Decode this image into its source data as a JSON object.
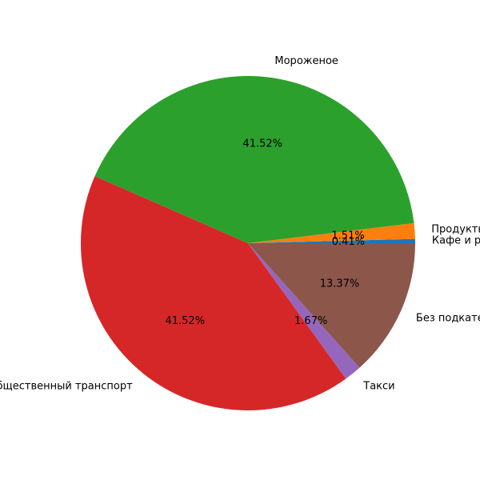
{
  "chart_data": {
    "type": "pie",
    "slices": [
      {
        "label": "Кафе и рестораны",
        "value": 0.41,
        "pct_label": "0.41%",
        "color": "#1f77b4"
      },
      {
        "label": "Продукты",
        "value": 1.51,
        "pct_label": "1.51%",
        "color": "#ff7f0e"
      },
      {
        "label": "Мороженое",
        "value": 41.52,
        "pct_label": "41.52%",
        "color": "#2ca02c"
      },
      {
        "label": "Общественный транспорт",
        "value": 41.52,
        "pct_label": "41.52%",
        "color": "#d62728"
      },
      {
        "label": "Такси",
        "value": 1.67,
        "pct_label": "1.67%",
        "color": "#9467bd"
      },
      {
        "label": "Без подкатегории",
        "value": 13.37,
        "pct_label": "13.37%",
        "color": "#8c564b"
      }
    ],
    "start_angle": 0,
    "direction": "counterclockwise",
    "legend": "none"
  }
}
